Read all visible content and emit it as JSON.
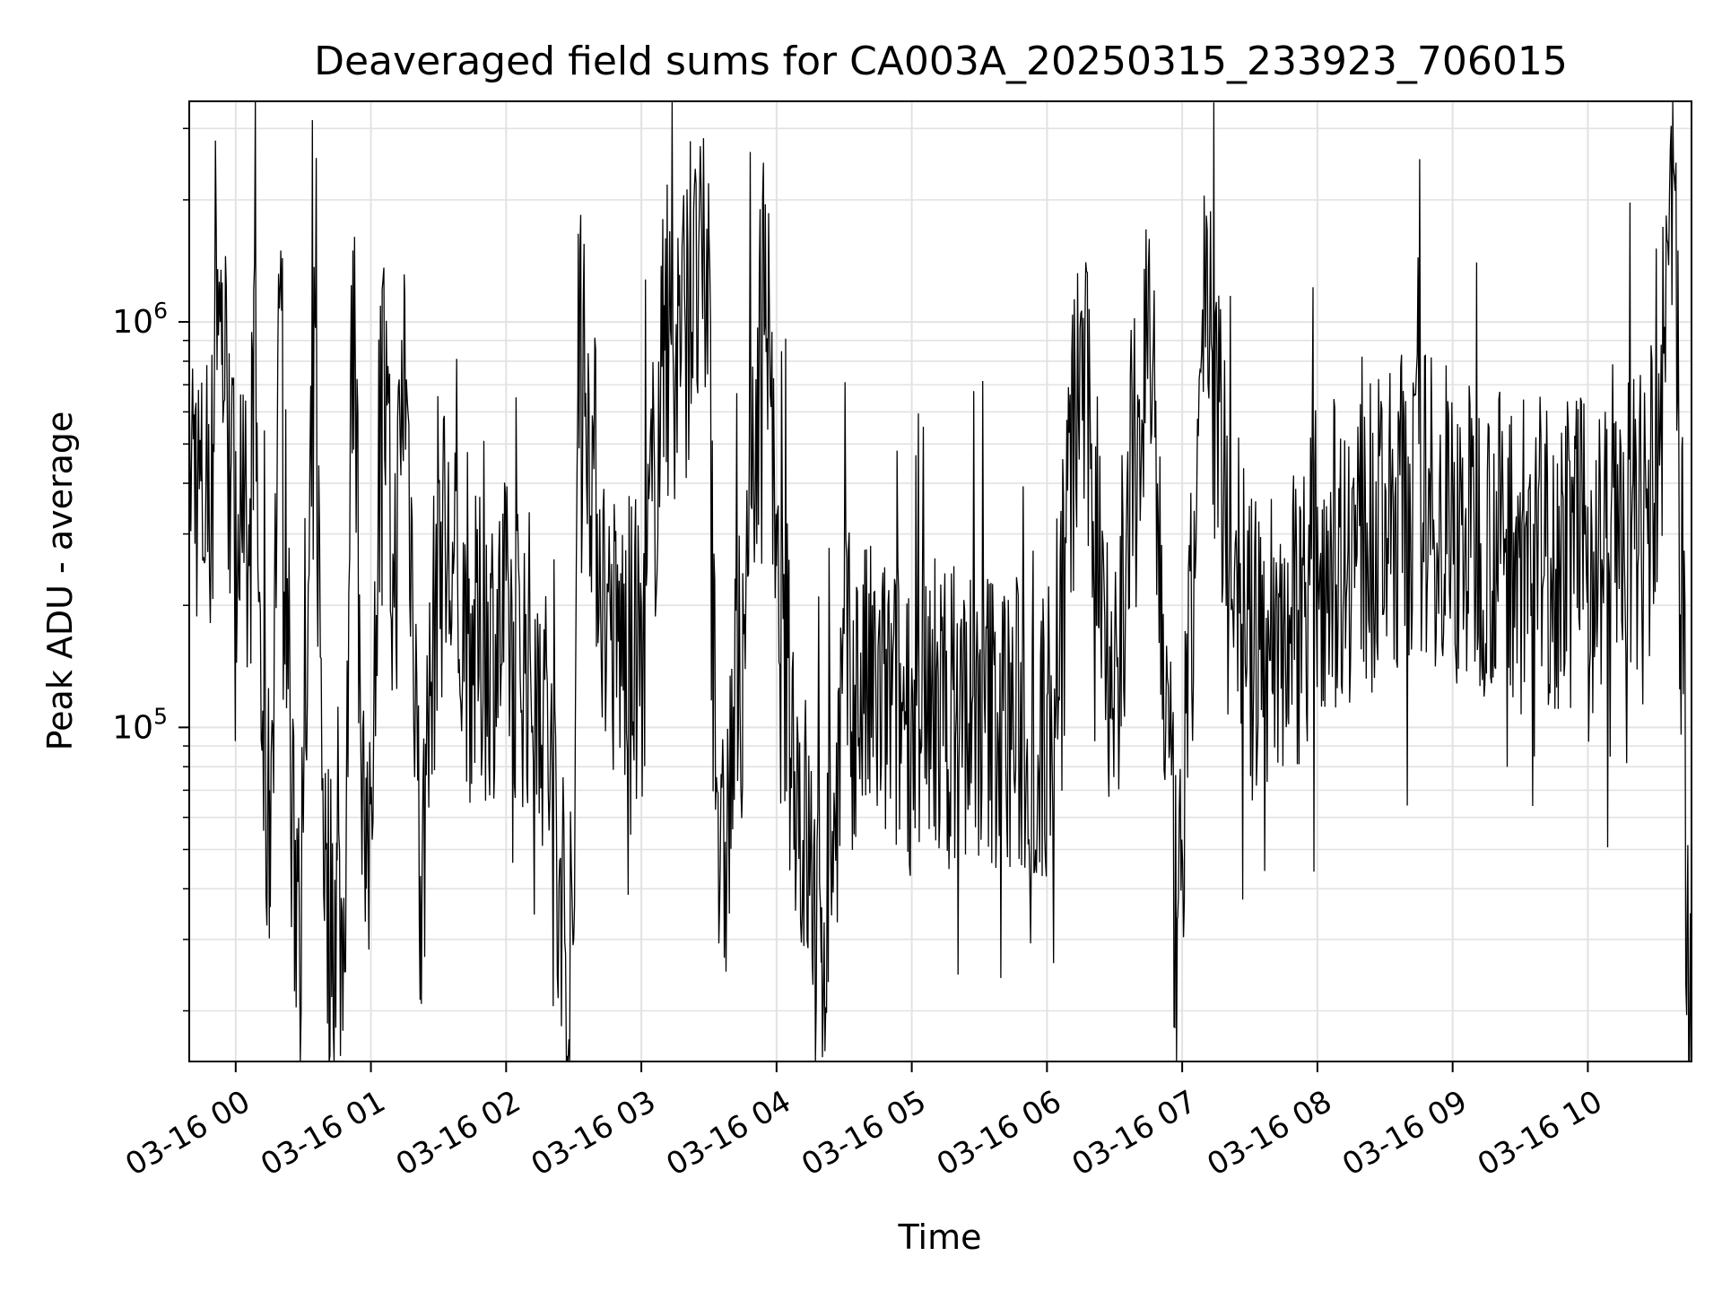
{
  "chart_data": {
    "type": "line",
    "title": "Deaveraged field sums for CA003A_20250315_233923_706015",
    "xlabel": "Time",
    "ylabel": "Peak ADU - average",
    "x_axis": {
      "kind": "date",
      "range": [
        "2025-03-15 23:39:23",
        "2025-03-16 10:46:00"
      ],
      "ticks": [
        "2025-03-16 00:00",
        "2025-03-16 01:00",
        "2025-03-16 02:00",
        "2025-03-16 03:00",
        "2025-03-16 04:00",
        "2025-03-16 05:00",
        "2025-03-16 06:00",
        "2025-03-16 07:00",
        "2025-03-16 08:00",
        "2025-03-16 09:00",
        "2025-03-16 10:00"
      ],
      "tick_labels": [
        "03-16 00",
        "03-16 01",
        "03-16 02",
        "03-16 03",
        "03-16 04",
        "03-16 05",
        "03-16 06",
        "03-16 07",
        "03-16 08",
        "03-16 09",
        "03-16 10"
      ],
      "tick_rotation_deg": 30
    },
    "y_axis": {
      "scale": "log",
      "ylim": [
        15000,
        3500000
      ],
      "tick_labels": [
        {
          "value": 100000,
          "base": "10",
          "exp": "5"
        },
        {
          "value": 1000000,
          "base": "10",
          "exp": "6"
        }
      ]
    },
    "grid": true,
    "legend": "none",
    "series": [
      {
        "color": "#000000",
        "points": [
          [
            "2025-03-15 23:39:23",
            720000
          ],
          [
            "2025-03-15 23:42:00",
            600000
          ],
          [
            "2025-03-15 23:45:00",
            450000
          ],
          [
            "2025-03-15 23:48:00",
            560000
          ],
          [
            "2025-03-15 23:50:00",
            500000
          ],
          [
            "2025-03-15 23:51:00",
            2800000
          ],
          [
            "2025-03-15 23:52:00",
            1350000
          ],
          [
            "2025-03-15 23:54:00",
            1250000
          ],
          [
            "2025-03-15 23:56:00",
            900000
          ],
          [
            "2025-03-15 23:58:00",
            450000
          ],
          [
            "2025-03-16 00:00:00",
            480000
          ],
          [
            "2025-03-16 00:04:00",
            400000
          ],
          [
            "2025-03-16 00:06:00",
            250000
          ],
          [
            "2025-03-16 00:08:00",
            1200000
          ],
          [
            "2025-03-16 00:12:00",
            110000
          ],
          [
            "2025-03-16 00:15:00",
            70000
          ],
          [
            "2025-03-16 00:20:00",
            1500000
          ],
          [
            "2025-03-16 00:25:00",
            60000
          ],
          [
            "2025-03-16 00:30:00",
            55000
          ],
          [
            "2025-03-16 00:35:00",
            1050000
          ],
          [
            "2025-03-16 00:40:00",
            50000
          ],
          [
            "2025-03-16 00:45:00",
            47000
          ],
          [
            "2025-03-16 00:48:00",
            38000
          ],
          [
            "2025-03-16 00:52:00",
            1500000
          ],
          [
            "2025-03-16 00:58:00",
            40000
          ],
          [
            "2025-03-16 01:05:00",
            1200000
          ],
          [
            "2025-03-16 01:10:00",
            250000
          ],
          [
            "2025-03-16 01:15:00",
            1150000
          ],
          [
            "2025-03-16 01:20:00",
            180000
          ],
          [
            "2025-03-16 01:22:00",
            43000
          ],
          [
            "2025-03-16 01:30:00",
            400000
          ],
          [
            "2025-03-16 01:45:00",
            200000
          ],
          [
            "2025-03-16 02:00:00",
            230000
          ],
          [
            "2025-03-16 02:15:00",
            180000
          ],
          [
            "2025-03-16 02:30:00",
            30000
          ],
          [
            "2025-03-16 02:32:00",
            1650000
          ],
          [
            "2025-03-16 02:45:00",
            220000
          ],
          [
            "2025-03-16 03:00:00",
            200000
          ],
          [
            "2025-03-16 03:10:00",
            1100000
          ],
          [
            "2025-03-16 03:30:00",
            1650000
          ],
          [
            "2025-03-16 03:35:00",
            45000
          ],
          [
            "2025-03-16 03:45:00",
            240000
          ],
          [
            "2025-03-16 03:55:00",
            1950000
          ],
          [
            "2025-03-16 04:00:00",
            250000
          ],
          [
            "2025-03-16 04:20:00",
            36000
          ],
          [
            "2025-03-16 04:30:00",
            170000
          ],
          [
            "2025-03-16 05:00:00",
            140000
          ],
          [
            "2025-03-16 05:30:00",
            150000
          ],
          [
            "2025-03-16 06:00:00",
            120000
          ],
          [
            "2025-03-16 06:15:00",
            1050000
          ],
          [
            "2025-03-16 06:30:00",
            160000
          ],
          [
            "2025-03-16 06:45:00",
            1350000
          ],
          [
            "2025-03-16 06:58:00",
            34000
          ],
          [
            "2025-03-16 07:10:00",
            1400000
          ],
          [
            "2025-03-16 07:30:00",
            200000
          ],
          [
            "2025-03-16 07:50:00",
            250000
          ],
          [
            "2025-03-16 08:00:00",
            350000
          ],
          [
            "2025-03-16 08:30:00",
            400000
          ],
          [
            "2025-03-16 08:45:00",
            500000
          ],
          [
            "2025-03-16 09:00:00",
            400000
          ],
          [
            "2025-03-16 09:30:00",
            380000
          ],
          [
            "2025-03-16 10:00:00",
            350000
          ],
          [
            "2025-03-16 10:20:00",
            400000
          ],
          [
            "2025-03-16 10:30:00",
            500000
          ],
          [
            "2025-03-16 10:38:00",
            2400000
          ],
          [
            "2025-03-16 10:40:00",
            1500000
          ],
          [
            "2025-03-16 10:41:00",
            190000
          ],
          [
            "2025-03-16 10:42:00",
            520000
          ],
          [
            "2025-03-16 10:44:00",
            32000
          ],
          [
            "2025-03-16 10:46:00",
            18000
          ]
        ]
      }
    ]
  }
}
